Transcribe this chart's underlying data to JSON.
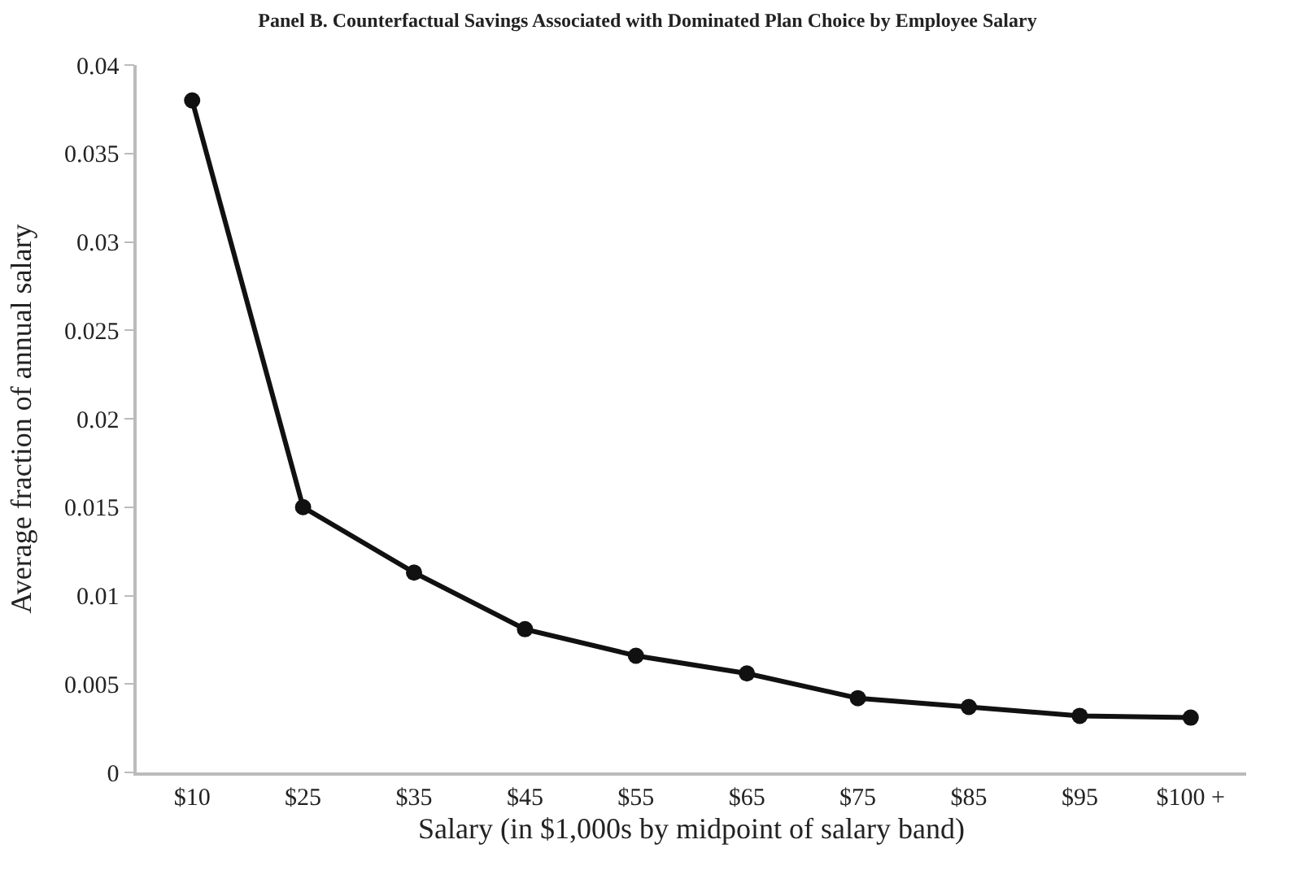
{
  "chart_data": {
    "type": "line",
    "title": "Panel B. Counterfactual Savings Associated with Dominated Plan Choice by Employee Salary",
    "xlabel": "Salary (in $1,000s by midpoint of salary band)",
    "ylabel": "Average fraction of annual salary",
    "categories": [
      "$10",
      "$25",
      "$35",
      "$45",
      "$55",
      "$65",
      "$75",
      "$85",
      "$95",
      "$100 +"
    ],
    "series": [
      {
        "color": "#111111",
        "values": [
          0.038,
          0.015,
          0.0113,
          0.0081,
          0.0066,
          0.0056,
          0.0042,
          0.0037,
          0.0032,
          0.0031
        ]
      }
    ],
    "ylim": [
      0,
      0.04
    ],
    "yticks": [
      0,
      0.005,
      0.01,
      0.015,
      0.02,
      0.025,
      0.03,
      0.035,
      0.04
    ],
    "grid": false,
    "legend": false,
    "marker": "circle",
    "line_style": "solid"
  }
}
